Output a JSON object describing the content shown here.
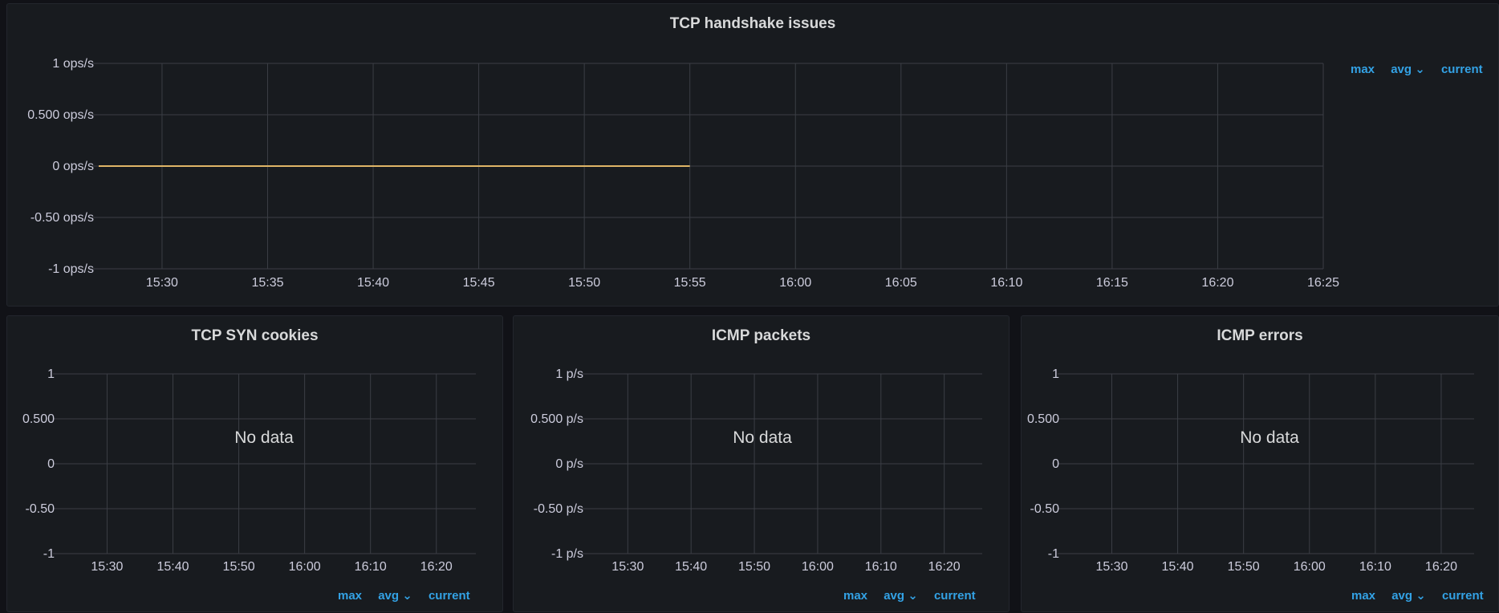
{
  "panels": {
    "handshake": {
      "title": "TCP handshake issues",
      "legend": {
        "max": "max",
        "avg": "avg ⌄",
        "current": "current"
      }
    },
    "syn": {
      "title": "TCP SYN cookies",
      "no_data": "No data",
      "legend": {
        "max": "max",
        "avg": "avg ⌄",
        "current": "current"
      }
    },
    "icmp_packets": {
      "title": "ICMP packets",
      "no_data": "No data",
      "legend": {
        "max": "max",
        "avg": "avg ⌄",
        "current": "current"
      }
    },
    "icmp_errors": {
      "title": "ICMP errors",
      "no_data": "No data",
      "legend": {
        "max": "max",
        "avg": "avg ⌄",
        "current": "current"
      }
    }
  },
  "colors": {
    "series": "#e0b567",
    "grid": "#3b3e45",
    "legend": "#33a2e5"
  },
  "chart_data": [
    {
      "type": "line",
      "title": "TCP handshake issues",
      "yticks": [
        "1 ops/s",
        "0.500 ops/s",
        "0 ops/s",
        "-0.50 ops/s",
        "-1 ops/s"
      ],
      "ylim": [
        -1,
        1
      ],
      "xticks": [
        "15:30",
        "15:35",
        "15:40",
        "15:45",
        "15:50",
        "15:55",
        "16:00",
        "16:05",
        "16:10",
        "16:15",
        "16:20",
        "16:25"
      ],
      "series": [
        {
          "x": [
            "15:27",
            "15:55"
          ],
          "values": [
            0,
            0
          ]
        }
      ]
    },
    {
      "type": "line",
      "title": "TCP SYN cookies",
      "yticks": [
        "1",
        "0.500",
        "0",
        "-0.50",
        "-1"
      ],
      "ylim": [
        -1,
        1
      ],
      "xticks": [
        "15:30",
        "15:40",
        "15:50",
        "16:00",
        "16:10",
        "16:20"
      ],
      "series": []
    },
    {
      "type": "line",
      "title": "ICMP packets",
      "yticks": [
        "1 p/s",
        "0.500 p/s",
        "0 p/s",
        "-0.50 p/s",
        "-1 p/s"
      ],
      "ylim": [
        -1,
        1
      ],
      "xticks": [
        "15:30",
        "15:40",
        "15:50",
        "16:00",
        "16:10",
        "16:20"
      ],
      "series": []
    },
    {
      "type": "line",
      "title": "ICMP errors",
      "yticks": [
        "1",
        "0.500",
        "0",
        "-0.50",
        "-1"
      ],
      "ylim": [
        -1,
        1
      ],
      "xticks": [
        "15:30",
        "15:40",
        "15:50",
        "16:00",
        "16:10",
        "16:20"
      ],
      "series": []
    }
  ]
}
